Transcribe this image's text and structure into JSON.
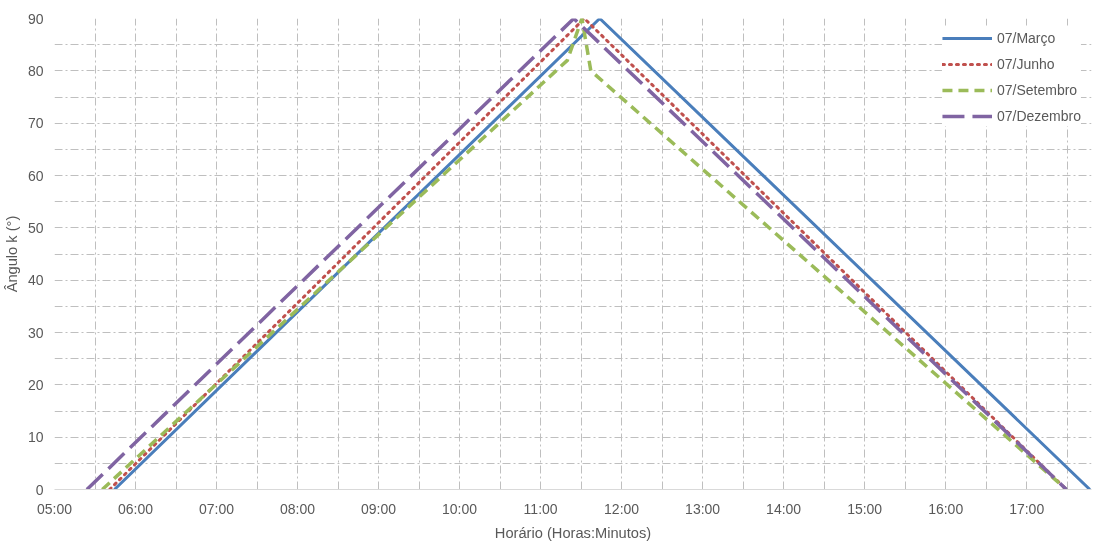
{
  "chart_data": {
    "type": "line",
    "xlabel": "Horário (Horas:Minutos)",
    "ylabel": "Ângulo k (°)",
    "xlim": [
      5,
      17.8
    ],
    "ylim": [
      0,
      90
    ],
    "xticks": [
      {
        "value": 5,
        "label": "05:00"
      },
      {
        "value": 5.5,
        "label": null
      },
      {
        "value": 6,
        "label": "06:00"
      },
      {
        "value": 6.5,
        "label": null
      },
      {
        "value": 7,
        "label": "07:00"
      },
      {
        "value": 7.5,
        "label": null
      },
      {
        "value": 8,
        "label": "08:00"
      },
      {
        "value": 8.5,
        "label": null
      },
      {
        "value": 9,
        "label": "09:00"
      },
      {
        "value": 9.5,
        "label": null
      },
      {
        "value": 10,
        "label": "10:00"
      },
      {
        "value": 10.5,
        "label": null
      },
      {
        "value": 11,
        "label": "11:00"
      },
      {
        "value": 11.5,
        "label": null
      },
      {
        "value": 12,
        "label": "12:00"
      },
      {
        "value": 12.5,
        "label": null
      },
      {
        "value": 13,
        "label": "13:00"
      },
      {
        "value": 13.5,
        "label": null
      },
      {
        "value": 14,
        "label": "14:00"
      },
      {
        "value": 14.5,
        "label": null
      },
      {
        "value": 15,
        "label": "15:00"
      },
      {
        "value": 15.5,
        "label": null
      },
      {
        "value": 16,
        "label": "16:00"
      },
      {
        "value": 16.5,
        "label": null
      },
      {
        "value": 17,
        "label": "17:00"
      },
      {
        "value": 17.5,
        "label": null
      }
    ],
    "yticks": [
      0,
      {
        "value": 5,
        "label": null
      },
      10,
      {
        "value": 15,
        "label": null
      },
      20,
      {
        "value": 25,
        "label": null
      },
      30,
      {
        "value": 35,
        "label": null
      },
      40,
      {
        "value": 45,
        "label": null
      },
      50,
      {
        "value": 55,
        "label": null
      },
      60,
      {
        "value": 65,
        "label": null
      },
      70,
      {
        "value": 75,
        "label": null
      },
      80,
      {
        "value": 85,
        "label": null
      },
      90
    ],
    "grid": true,
    "legend": "top right",
    "marker": "none",
    "series": [
      {
        "name": "07/Março",
        "color": "#4a7ebb",
        "line_style": "solid",
        "x": [
          5.74,
          11.73,
          17.78
        ],
        "values": [
          0,
          90,
          0
        ]
      },
      {
        "name": "07/Junho",
        "color": "#c0504d",
        "line_style": "dotted",
        "x": [
          5.68,
          11.54,
          17.49
        ],
        "values": [
          0,
          90,
          0
        ]
      },
      {
        "name": "07/Setembro",
        "color": "#9bbb59",
        "line_style": "dashed",
        "x": [
          5.59,
          11.33,
          11.51,
          11.62,
          17.49
        ],
        "values": [
          0,
          82,
          90,
          80,
          0
        ]
      },
      {
        "name": "07/Dezembro",
        "color": "#8064a2",
        "line_style": "longdash",
        "x": [
          5.4,
          11.41,
          17.49
        ],
        "values": [
          0,
          90,
          0
        ]
      }
    ]
  }
}
